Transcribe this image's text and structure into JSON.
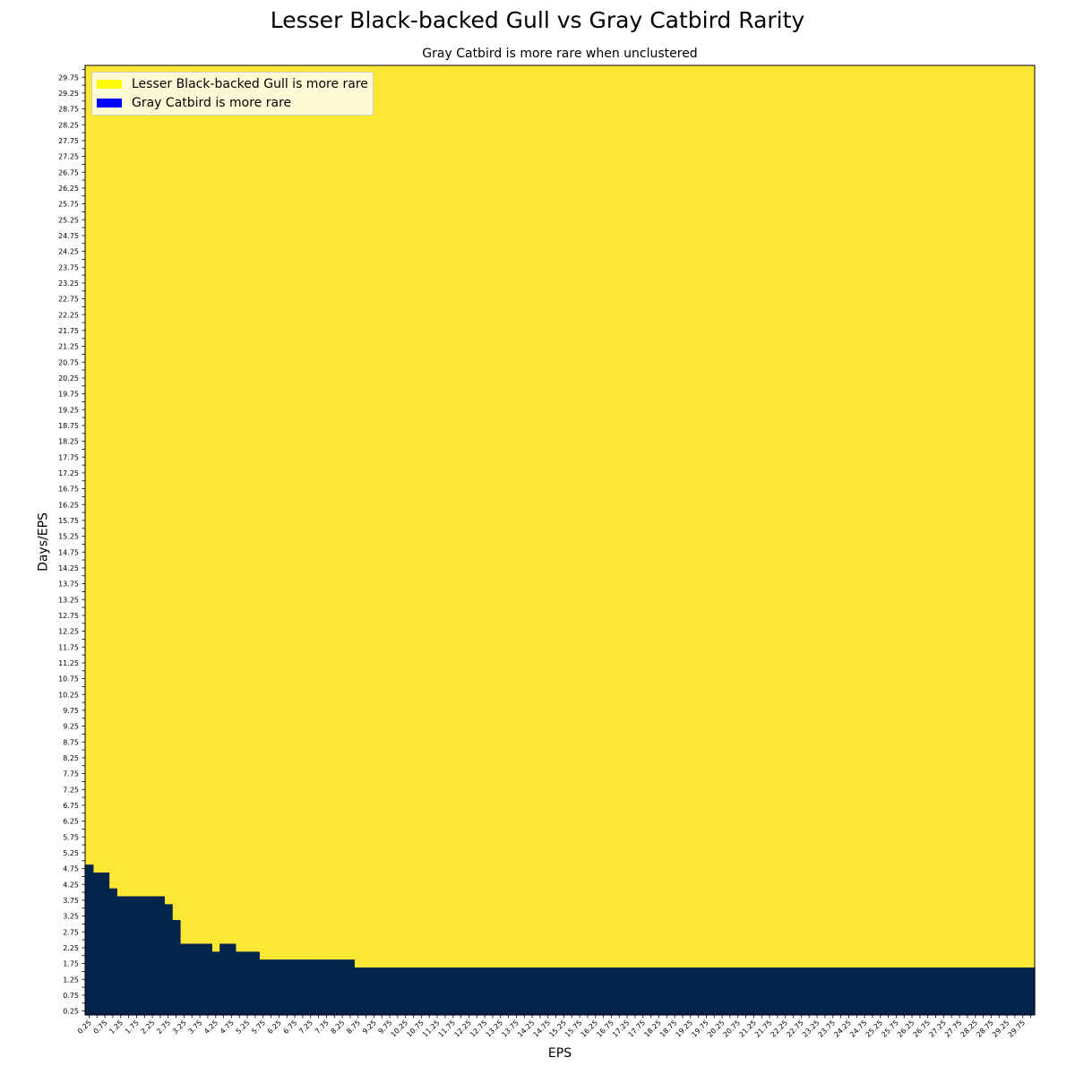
{
  "chart_data": {
    "type": "heatmap",
    "title": "Lesser Black-backed Gull vs Gray Catbird Rarity",
    "subtitle": "Gray Catbird is more rare when unclustered",
    "xlabel": "EPS",
    "ylabel": "Days/EPS",
    "x_values": {
      "start": 0.25,
      "end": 30.0,
      "step": 0.25
    },
    "y_values": {
      "start": 0.25,
      "end": 30.0,
      "step": 0.25
    },
    "x_tick_labels_every": 0.5,
    "y_tick_labels_every": 0.5,
    "colors": {
      "gull_more_rare": "#fde735",
      "catbird_more_rare": "#03224c"
    },
    "legend": {
      "placement": "top-left",
      "items": [
        {
          "label": "Lesser Black-backed Gull is more rare",
          "color": "#ffff00"
        },
        {
          "label": "Gray Catbird is more rare",
          "color": "#0000ff"
        }
      ]
    },
    "boundary_note": "Gray Catbird is more rare for Days/EPS values at or below the boundary for each EPS range",
    "catbird_more_rare_boundary": [
      {
        "eps_from": 0.25,
        "eps_to": 0.25,
        "max_days_per_eps": 4.75
      },
      {
        "eps_from": 0.5,
        "eps_to": 0.75,
        "max_days_per_eps": 4.5
      },
      {
        "eps_from": 1.0,
        "eps_to": 1.0,
        "max_days_per_eps": 4.0
      },
      {
        "eps_from": 1.25,
        "eps_to": 2.5,
        "max_days_per_eps": 3.75
      },
      {
        "eps_from": 2.75,
        "eps_to": 2.75,
        "max_days_per_eps": 3.5
      },
      {
        "eps_from": 3.0,
        "eps_to": 3.0,
        "max_days_per_eps": 3.0
      },
      {
        "eps_from": 3.25,
        "eps_to": 4.0,
        "max_days_per_eps": 2.25
      },
      {
        "eps_from": 4.25,
        "eps_to": 4.25,
        "max_days_per_eps": 2.0
      },
      {
        "eps_from": 4.5,
        "eps_to": 4.75,
        "max_days_per_eps": 2.25
      },
      {
        "eps_from": 5.0,
        "eps_to": 5.5,
        "max_days_per_eps": 2.0
      },
      {
        "eps_from": 5.75,
        "eps_to": 8.5,
        "max_days_per_eps": 1.75
      },
      {
        "eps_from": 8.75,
        "eps_to": 30.0,
        "max_days_per_eps": 1.5
      }
    ],
    "catbird_notch_cells": [
      {
        "eps": 2.75,
        "days_per_eps": 2.75
      }
    ],
    "grid": false
  }
}
